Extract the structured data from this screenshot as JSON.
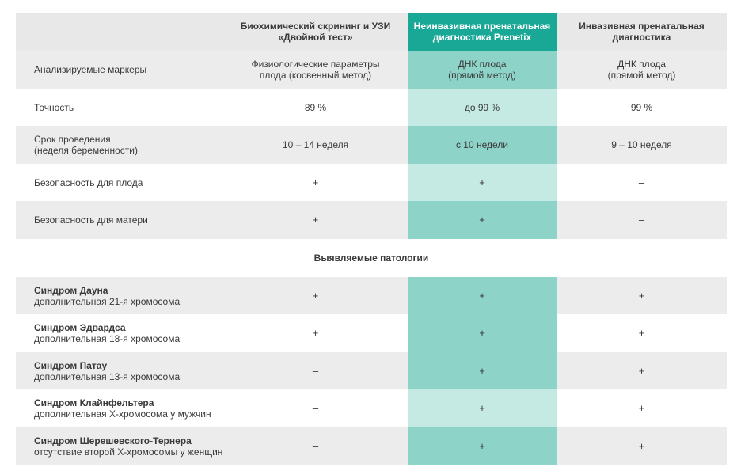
{
  "header": {
    "col1": "Биохимический скрининг и УЗИ\n«Двойной тест»",
    "col2": "Неинвазивная пренатальная\nдиагностика Prenetix",
    "col3": "Инвазивная пренатальная\nдиагностика"
  },
  "rows": [
    {
      "label": "Анализируемые маркеры",
      "v1": "Физиологические параметры\nплода (косвенный метод)",
      "v2": "ДНК плода\n(прямой метод)",
      "v3": "ДНК плода\n(прямой метод)"
    },
    {
      "label": "Точность",
      "v1": "89 %",
      "v2": "до 99 %",
      "v3": "99 %"
    },
    {
      "label": "Срок проведения\n(неделя беременности)",
      "v1": "10 – 14 неделя",
      "v2": "с 10 недели",
      "v3": "9 – 10 неделя"
    },
    {
      "label": "Безопасность для плода",
      "v1": "+",
      "v2": "+",
      "v3": "–"
    },
    {
      "label": "Безопасность для матери",
      "v1": "+",
      "v2": "+",
      "v3": "–"
    }
  ],
  "section_title": "Выявляемые патологии",
  "pathologies": [
    {
      "name": "Синдром Дауна",
      "desc": "дополнительная 21-я хромосома",
      "v1": "+",
      "v2": "+",
      "v3": "+"
    },
    {
      "name": "Синдром Эдвардса",
      "desc": "дополнительная 18-я хромосома",
      "v1": "+",
      "v2": "+",
      "v3": "+"
    },
    {
      "name": "Синдром Патау",
      "desc": "дополнительная 13-я хромосома",
      "v1": "–",
      "v2": "+",
      "v3": "+"
    },
    {
      "name": "Синдром Клайнфельтера",
      "desc": "дополнительная X-хромосома у мужчин",
      "v1": "–",
      "v2": "+",
      "v3": "+"
    },
    {
      "name": "Синдром Шерешевского-Тернера",
      "desc": "отсутствие второй X-хромосомы у женщин",
      "v1": "–",
      "v2": "+",
      "v3": "+"
    }
  ],
  "colors": {
    "accent": "#1aa896",
    "accent_dark": "#8ed3c8",
    "accent_light": "#c5e9e3",
    "grey": "#ececec"
  }
}
